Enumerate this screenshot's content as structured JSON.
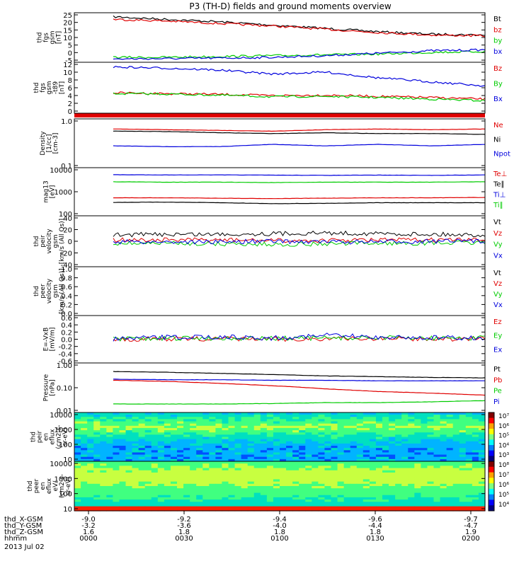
{
  "title": "P3 (TH-D) fields and ground moments overview",
  "date_label": "2013 Jul 02",
  "colors": {
    "black": "#000000",
    "red": "#e00000",
    "green": "#00cc00",
    "blue": "#0000dd"
  },
  "chart_data": [
    {
      "type": "line",
      "panel": "fgs_gsm",
      "ylabel": [
        "thd",
        "fgs",
        "gsm",
        "[nT]"
      ],
      "ylim": [
        -5,
        25
      ],
      "yticks": [
        "25",
        "20",
        "15",
        "10",
        "5",
        "0",
        "-5"
      ],
      "series": [
        {
          "name": "Bt",
          "color": "black",
          "values": [
            22.5,
            21,
            19.5,
            17.5,
            15.5,
            13.5,
            12,
            11.5
          ]
        },
        {
          "name": "bz",
          "color": "red",
          "values": [
            21,
            20,
            18.5,
            17,
            15,
            13,
            11.5,
            11
          ]
        },
        {
          "name": "by",
          "color": "green",
          "values": [
            -2,
            -2,
            -1.5,
            -1,
            -0.5,
            0,
            1,
            1.5
          ]
        },
        {
          "name": "bx",
          "color": "blue",
          "values": [
            -3,
            -2.8,
            -2.5,
            -2,
            -1,
            0.5,
            2,
            2.5
          ]
        }
      ]
    },
    {
      "type": "line",
      "panel": "fgs_gsm_t89",
      "ylabel": [
        "thd",
        "fgs",
        "gsm",
        "-t89",
        "[nT]"
      ],
      "ylim": [
        -1,
        12
      ],
      "yticks": [
        "12",
        "10",
        "8",
        "6",
        "4",
        "2",
        "0"
      ],
      "series": [
        {
          "name": "Bz",
          "color": "red",
          "values": [
            4.2,
            4.0,
            3.8,
            3.5,
            3.6,
            3.3,
            3.0,
            2.6
          ]
        },
        {
          "name": "By",
          "color": "green",
          "values": [
            4.0,
            3.9,
            3.6,
            3.2,
            3.3,
            3.0,
            2.6,
            2.2
          ]
        },
        {
          "name": "Bx",
          "color": "blue",
          "values": [
            10.8,
            10.5,
            10,
            9,
            9.5,
            8,
            7,
            6
          ]
        }
      ]
    },
    {
      "type": "line",
      "panel": "density",
      "log": true,
      "ylabel": [
        "Density",
        "[1/cc]",
        "[cm-3]"
      ],
      "ylim": [
        0.1,
        1.0
      ],
      "yticks": [
        "1.0",
        "0.1"
      ],
      "series": [
        {
          "name": "Ne",
          "color": "red",
          "values": [
            0.62,
            0.6,
            0.58,
            0.56,
            0.6,
            0.62,
            0.6,
            0.62
          ]
        },
        {
          "name": "Ni",
          "color": "black",
          "values": [
            0.56,
            0.55,
            0.52,
            0.5,
            0.52,
            0.5,
            0.5,
            0.48
          ]
        },
        {
          "name": "Npot",
          "color": "blue",
          "values": [
            0.28,
            0.27,
            0.27,
            0.3,
            0.28,
            0.3,
            0.28,
            0.3
          ]
        }
      ]
    },
    {
      "type": "line",
      "panel": "temperature",
      "log": true,
      "ylabel": [
        "mag13",
        "[eV]"
      ],
      "ylim": [
        100,
        10000
      ],
      "yticks": [
        "10000",
        "1000",
        "100"
      ],
      "series": [
        {
          "name": "Te⊥",
          "color": "red",
          "values": [
            560,
            560,
            540,
            520,
            540,
            560,
            560,
            580
          ]
        },
        {
          "name": "Te∥",
          "color": "black",
          "values": [
            360,
            370,
            350,
            320,
            330,
            350,
            350,
            350
          ]
        },
        {
          "name": "Ti⊥",
          "color": "blue",
          "values": [
            5100,
            5000,
            5000,
            4900,
            4800,
            4900,
            4800,
            5000
          ]
        },
        {
          "name": "Ti∥",
          "color": "green",
          "values": [
            2600,
            2500,
            2500,
            2400,
            2500,
            2500,
            2500,
            2600
          ]
        }
      ]
    },
    {
      "type": "line",
      "panel": "peir_velocity",
      "ylabel": [
        "thd",
        "peir",
        "velocity",
        "gsm",
        "[km/s (All Qs)]"
      ],
      "ylim": [
        -40,
        40
      ],
      "yticks": [
        "40",
        "20",
        "0",
        "-20",
        "-40"
      ],
      "series": [
        {
          "name": "Vt",
          "color": "black",
          "values": [
            10,
            11,
            11,
            12,
            13,
            12,
            11,
            10
          ]
        },
        {
          "name": "Vz",
          "color": "red",
          "values": [
            2,
            2,
            2,
            1,
            1,
            2,
            2,
            2
          ]
        },
        {
          "name": "Vy",
          "color": "green",
          "values": [
            -3,
            -3,
            -4,
            -5,
            -4,
            -3,
            -3,
            -2
          ]
        },
        {
          "name": "Vx",
          "color": "blue",
          "values": [
            -1,
            -1,
            -1,
            0,
            -1,
            -1,
            0,
            0
          ]
        }
      ]
    },
    {
      "type": "line",
      "panel": "peer_velocity",
      "ylabel": [
        "thd",
        "peer",
        "velocity",
        "gsm",
        "[km/s (All Qs)]"
      ],
      "ylim": [
        0,
        1
      ],
      "yticks": [
        "1.0",
        "0.8",
        "0.6",
        "0.4",
        "0.2",
        "0.0"
      ],
      "series": [
        {
          "name": "Vt",
          "color": "black",
          "values": []
        },
        {
          "name": "Vz",
          "color": "red",
          "values": []
        },
        {
          "name": "Vy",
          "color": "green",
          "values": []
        },
        {
          "name": "Vx",
          "color": "blue",
          "values": []
        }
      ]
    },
    {
      "type": "line",
      "panel": "efield",
      "ylabel": [
        "E=-VxB",
        "[mV/m]"
      ],
      "ylim": [
        -0.6,
        0.6
      ],
      "yticks": [
        "0.6",
        "0.4",
        "0.2",
        "0.0",
        "-0.2",
        "-0.4",
        "-0.6"
      ],
      "series": [
        {
          "name": "Ez",
          "color": "red",
          "values": [
            0,
            0.01,
            0.01,
            0,
            0.01,
            0.02,
            0.01,
            0.01
          ]
        },
        {
          "name": "Ey",
          "color": "green",
          "values": [
            0,
            0.02,
            0.03,
            0.02,
            0.03,
            0.04,
            0.03,
            0.03
          ]
        },
        {
          "name": "Ex",
          "color": "blue",
          "values": [
            0,
            0.05,
            0.06,
            0.03,
            0.1,
            0.05,
            0.04,
            0.03
          ]
        }
      ]
    },
    {
      "type": "line",
      "panel": "pressure",
      "log": true,
      "ylabel": [
        "Pressure",
        "[nPa]"
      ],
      "ylim": [
        0.01,
        1.0
      ],
      "yticks": [
        "1.00",
        "0.10",
        "0.01"
      ],
      "series": [
        {
          "name": "Pt",
          "color": "black",
          "values": [
            0.45,
            0.42,
            0.38,
            0.34,
            0.3,
            0.28,
            0.26,
            0.25
          ]
        },
        {
          "name": "Pb",
          "color": "red",
          "values": [
            0.2,
            0.18,
            0.15,
            0.12,
            0.09,
            0.07,
            0.06,
            0.05
          ]
        },
        {
          "name": "Pe",
          "color": "green",
          "values": [
            0.022,
            0.022,
            0.022,
            0.023,
            0.025,
            0.025,
            0.027,
            0.03
          ]
        },
        {
          "name": "Pi",
          "color": "blue",
          "values": [
            0.22,
            0.21,
            0.21,
            0.2,
            0.2,
            0.19,
            0.19,
            0.19
          ]
        }
      ]
    },
    {
      "type": "heatmap",
      "panel": "peir_eflux",
      "ylabel": [
        "thd",
        "peir",
        "en",
        "eflux",
        "(cm2-s-",
        "sr-eV)"
      ],
      "yticks": [
        "10000",
        "1000",
        "100",
        "10"
      ],
      "colorbar_ticks": [
        "10⁷",
        "10⁶",
        "10⁵",
        "10⁴",
        "10³"
      ]
    },
    {
      "type": "heatmap",
      "panel": "peer_eflux",
      "ylabel": [
        "thd",
        "peer",
        "en",
        "eflux",
        "eV/",
        "(cm2-s-",
        "sr-eV)"
      ],
      "yticks": [
        "10000",
        "1000",
        "100",
        "10"
      ],
      "colorbar_ticks": [
        "10⁸",
        "10⁷",
        "10⁶",
        "10⁵",
        "10⁴"
      ]
    }
  ],
  "xaxis": {
    "row_labels": [
      "thd_X-GSM",
      "thd_Y-GSM",
      "thd_Z-GSM",
      "hhmm"
    ],
    "columns": [
      [
        "-9.0",
        "-3.2",
        "1.6",
        "0000"
      ],
      [
        "-9.2",
        "-3.6",
        "1.8",
        "0030"
      ],
      [
        "-9.4",
        "-4.0",
        "1.8",
        "0100"
      ],
      [
        "-9.6",
        "-4.4",
        "1.8",
        "0130"
      ],
      [
        "-9.7",
        "-4.7",
        "1.9",
        "0200"
      ]
    ]
  }
}
